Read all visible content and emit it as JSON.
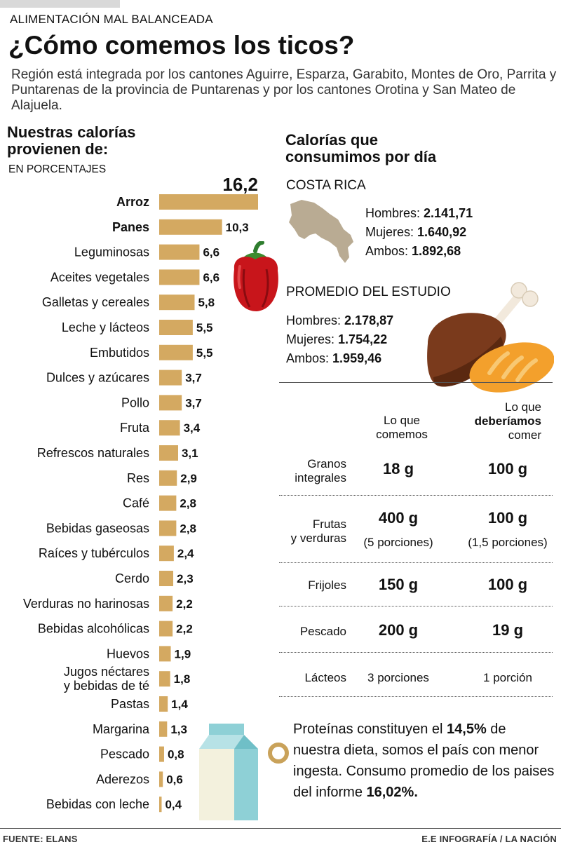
{
  "header": {
    "kicker": "ALIMENTACIÓN MAL BALANCEADA",
    "title": "¿Cómo comemos los ticos?",
    "subtitle": "Región está integrada por los cantones Aguirre, Esparza, Garabito, Montes de Oro, Parrita y Puntarenas de la provincia de Puntarenas y por los cantones Orotina y San Mateo de Alajuela."
  },
  "calories_section": {
    "heading_line1": "Nuestras calorías",
    "heading_line2": "provienen de:",
    "unit_label": "EN PORCENTAJES"
  },
  "chart_data": {
    "type": "bar",
    "orientation": "horizontal",
    "title": "Nuestras calorías provienen de:",
    "ylabel": "EN PORCENTAJES",
    "bar_color": "#d4a961",
    "xlim": [
      0,
      16.2
    ],
    "categories": [
      "Arroz",
      "Panes",
      "Leguminosas",
      "Aceites vegetales",
      "Galletas y cereales",
      "Leche y lácteos",
      "Embutidos",
      "Dulces y azúcares",
      "Pollo",
      "Fruta",
      "Refrescos naturales",
      "Res",
      "Café",
      "Bebidas gaseosas",
      "Raíces y tubérculos",
      "Cerdo",
      "Verduras no harinosas",
      "Bebidas alcohólicas",
      "Huevos",
      "Jugos néctares y bebidas de té",
      "Pastas",
      "Margarina",
      "Pescado",
      "Aderezos",
      "Bebidas con leche"
    ],
    "values": [
      16.2,
      10.3,
      6.6,
      6.6,
      5.8,
      5.5,
      5.5,
      3.7,
      3.7,
      3.4,
      3.1,
      2.9,
      2.8,
      2.8,
      2.4,
      2.3,
      2.2,
      2.2,
      1.9,
      1.8,
      1.4,
      1.3,
      0.8,
      0.6,
      0.4
    ],
    "value_labels": [
      "16,2",
      "10,3",
      "6,6",
      "6,6",
      "5,8",
      "5,5",
      "5,5",
      "3,7",
      "3,7",
      "3,4",
      "3,1",
      "2,9",
      "2,8",
      "2,8",
      "2,4",
      "2,3",
      "2,2",
      "2,2",
      "1,9",
      "1,8",
      "1,4",
      "1,3",
      "0,8",
      "0,6",
      "0,4"
    ],
    "bold_categories": [
      "Arroz",
      "Panes"
    ]
  },
  "daily_calories": {
    "heading_line1": "Calorías que",
    "heading_line2": "consumimos por día",
    "costa_rica": {
      "label": "COSTA RICA",
      "hombres_label": "Hombres:",
      "hombres_value": "2.141,71",
      "mujeres_label": "Mujeres:",
      "mujeres_value": "1.640,92",
      "ambos_label": "Ambos:",
      "ambos_value": "1.892,68"
    },
    "estudio": {
      "label": "PROMEDIO DEL ESTUDIO",
      "hombres_label": "Hombres:",
      "hombres_value": "2.178,87",
      "mujeres_label": "Mujeres:",
      "mujeres_value": "1.754,22",
      "ambos_label": "Ambos:",
      "ambos_value": "1.959,46"
    }
  },
  "comparison": {
    "col_eat_line1": "Lo que",
    "col_eat_line2": "comemos",
    "col_should_line1": "Lo que",
    "col_should_line2": "deberíamos",
    "col_should_line3": "comer",
    "rows": [
      {
        "label_line1": "Granos",
        "label_line2": "integrales",
        "eat": "18 g",
        "should": "100 g"
      },
      {
        "label_line1": "Frutas",
        "label_line2": "y verduras",
        "eat": "400 g",
        "eat_note": "(5 porciones)",
        "should": "100 g",
        "should_note": "(1,5 porciones)"
      },
      {
        "label_line1": "Frijoles",
        "eat": "150 g",
        "should": "100 g"
      },
      {
        "label_line1": "Pescado",
        "eat": "200 g",
        "should": "19 g"
      },
      {
        "label_line1": "Lácteos",
        "eat": "3 porciones",
        "should": "1 porción"
      }
    ]
  },
  "protein": {
    "text_part1": "Proteínas constituyen el ",
    "highlight1": "14,5%",
    "text_part2": " de nuestra dieta, somos el país con menor ingesta. Consumo promedio de los paises del informe ",
    "highlight2": "16,02%."
  },
  "footer": {
    "source": "FUENTE: ELANS",
    "credit": "E.E INFOGRAFÍA / LA NACIÓN"
  },
  "colors": {
    "bar": "#d4a961",
    "pepper": "#c8151b",
    "chicken": "#7a3a1c",
    "bread": "#f3a02c",
    "milk_blue": "#8ed0d6",
    "bullet": "#c9a25a",
    "map": "#b9ab93"
  }
}
